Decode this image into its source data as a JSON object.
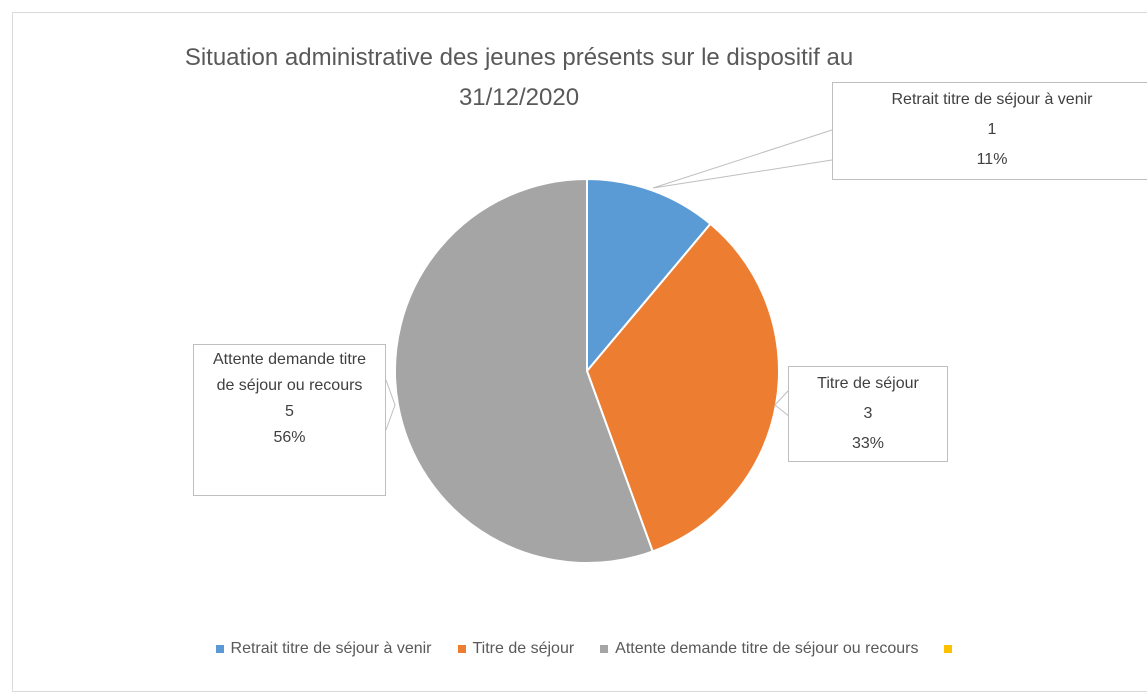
{
  "chart_data": {
    "type": "pie",
    "title": "Situation administrative des jeunes présents sur le dispositif au 31/12/2020",
    "categories": [
      "Retrait titre de séjour à venir",
      "Titre de séjour",
      "Attente demande titre de séjour ou recours",
      null
    ],
    "values": [
      1,
      3,
      5,
      0
    ],
    "percent_labels": [
      "11%",
      "33%",
      "56%",
      null
    ],
    "colors": [
      "#5b9bd5",
      "#ed7d31",
      "#a5a5a5",
      "#ffc000"
    ],
    "legend": "bottom"
  }
}
